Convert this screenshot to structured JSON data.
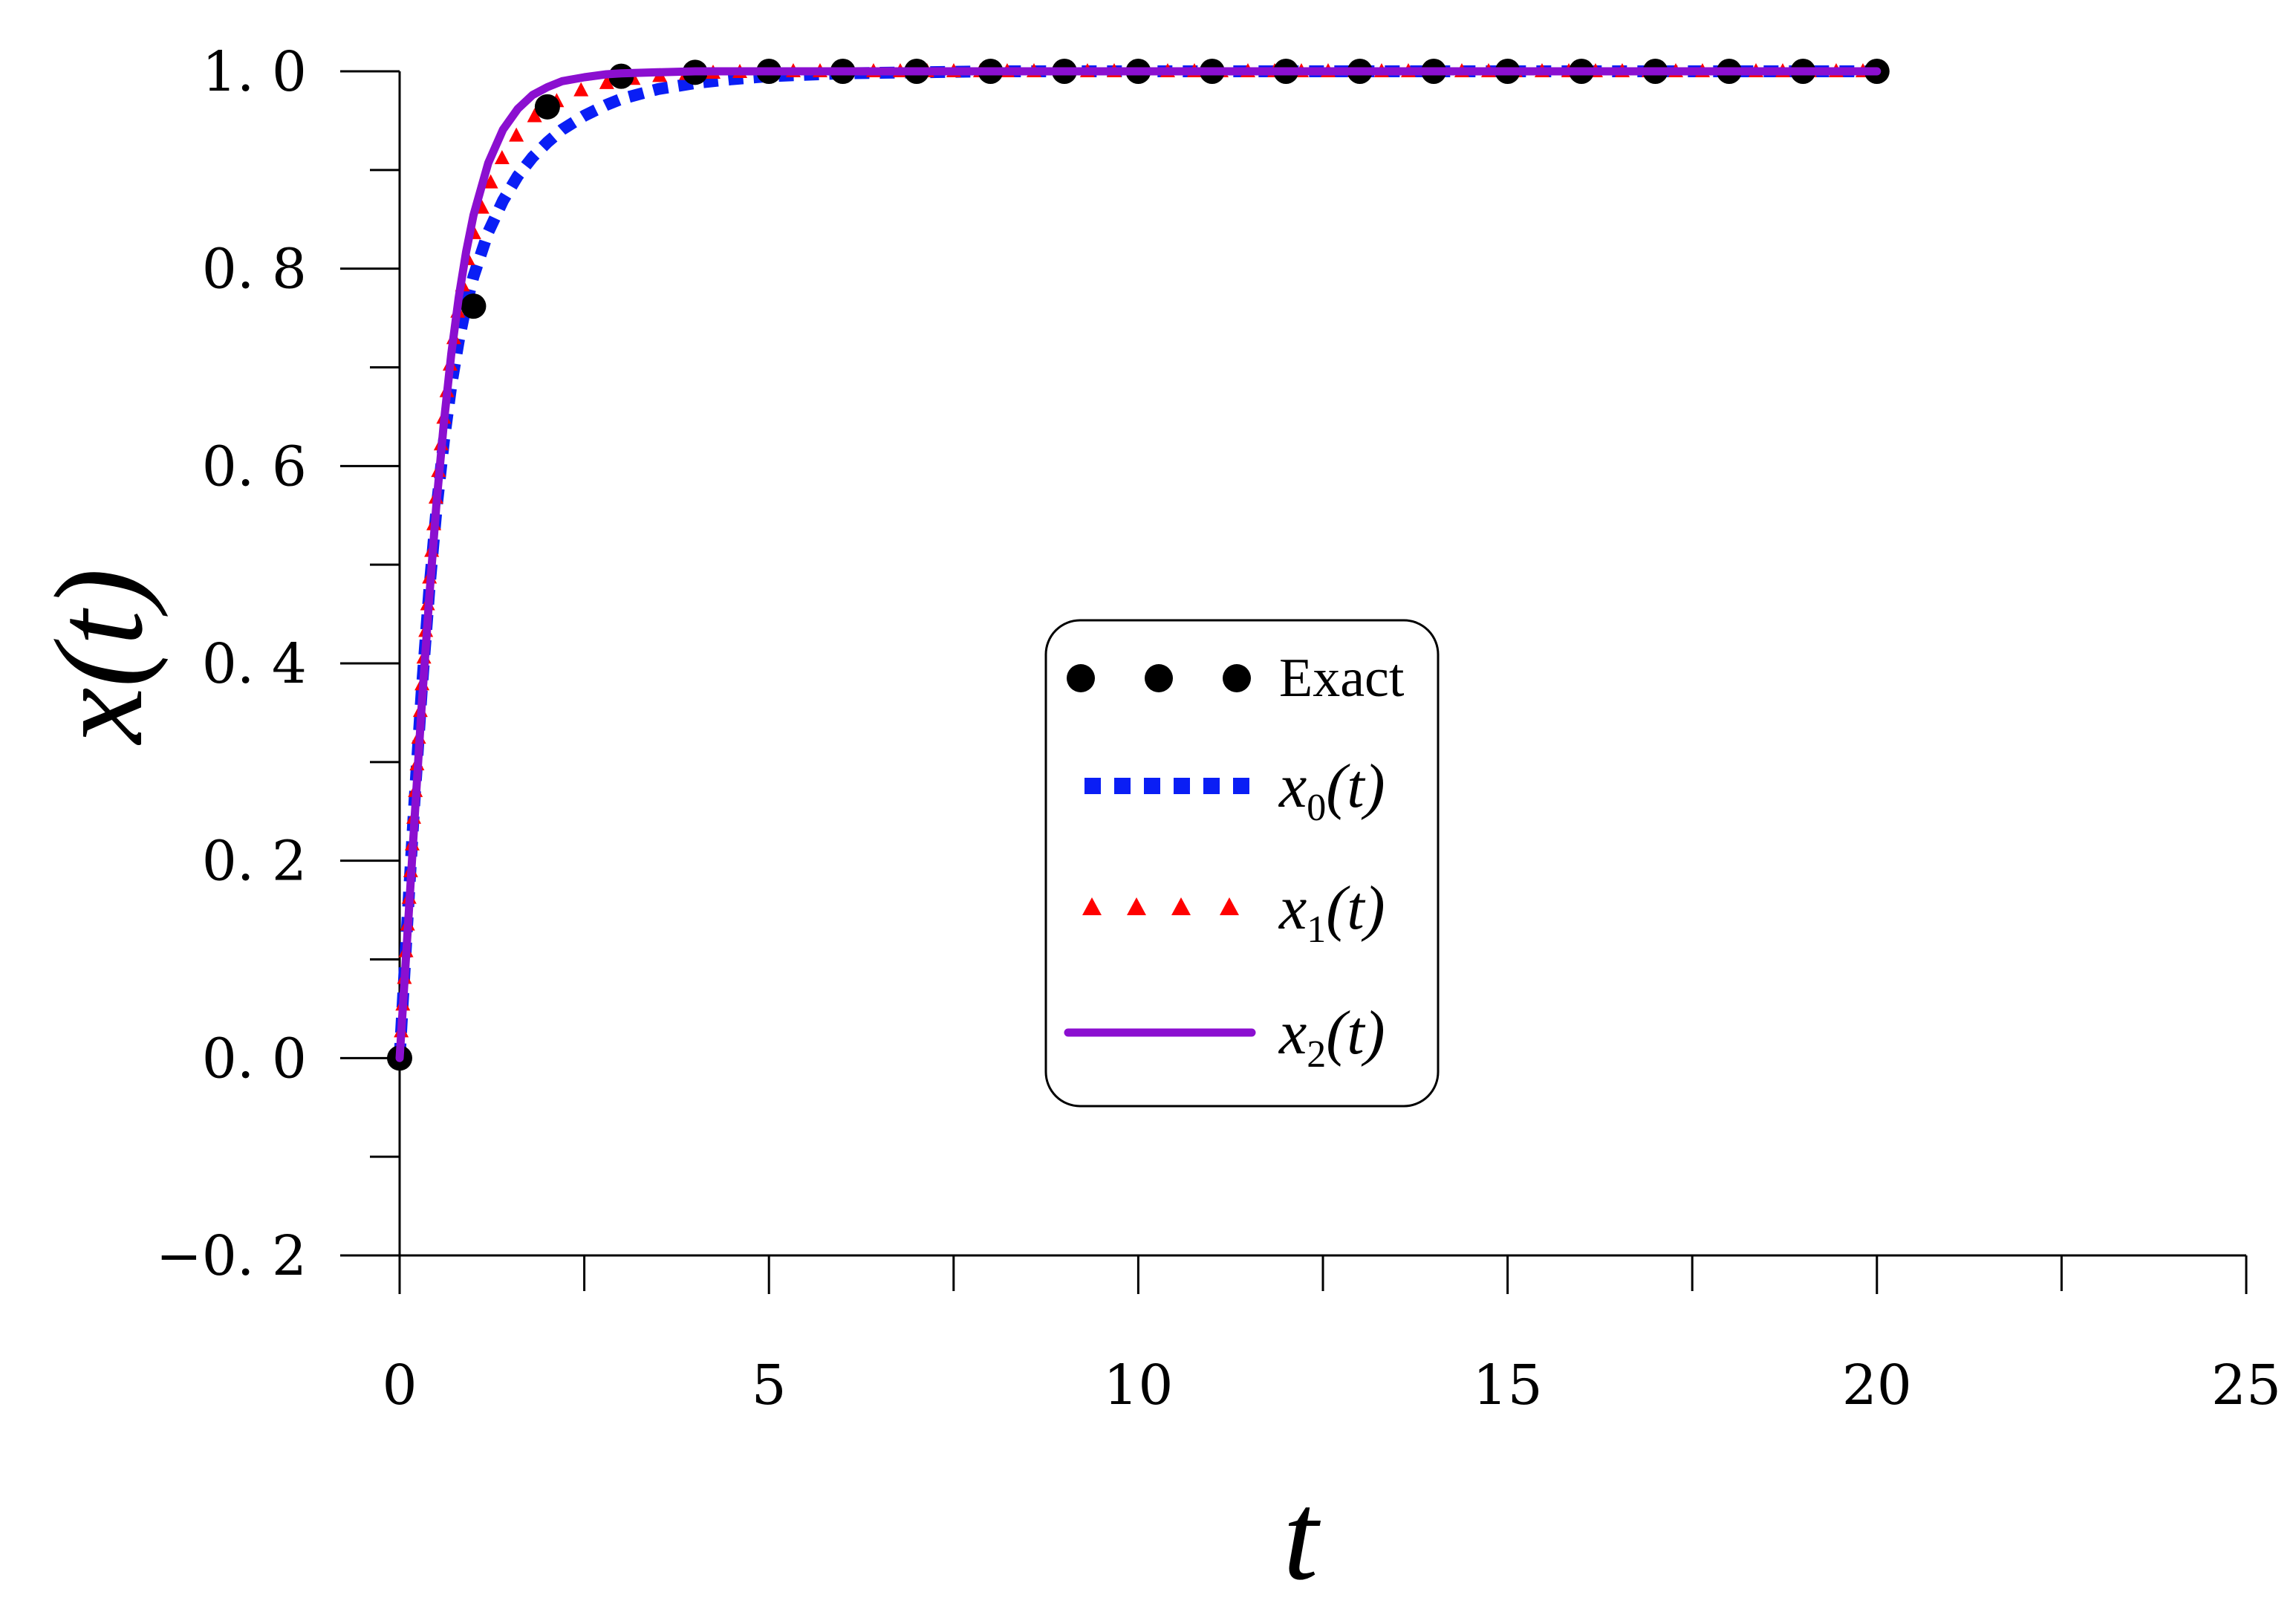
{
  "chart_data": {
    "type": "line",
    "xlabel": "t",
    "ylabel": "x(t)",
    "xlim": [
      0,
      25
    ],
    "ylim": [
      -0.2,
      1.0
    ],
    "x_ticks": [
      0,
      5,
      10,
      15,
      20,
      25
    ],
    "y_ticks": [
      -0.2,
      0.0,
      0.2,
      0.4,
      0.6,
      0.8,
      1.0
    ],
    "x_tick_labels": [
      "0",
      "5",
      "10",
      "15",
      "20",
      "25"
    ],
    "y_tick_labels": [
      "−0. 2",
      "0. 0",
      "0. 2",
      "0. 4",
      "0. 6",
      "0. 8",
      "1. 0"
    ],
    "grid": false,
    "legend_position": "center",
    "series": [
      {
        "name": "Exact",
        "style": "markers-circle",
        "color": "#000000",
        "x": [
          0,
          1,
          2,
          3,
          4,
          5,
          6,
          7,
          8,
          9,
          10,
          11,
          12,
          13,
          14,
          15,
          16,
          17,
          18,
          19,
          20
        ],
        "y": [
          0.0,
          0.762,
          0.964,
          0.995,
          0.999,
          1.0,
          1.0,
          1.0,
          1.0,
          1.0,
          1.0,
          1.0,
          1.0,
          1.0,
          1.0,
          1.0,
          1.0,
          1.0,
          1.0,
          1.0,
          1.0
        ]
      },
      {
        "name": "x0(t)",
        "label_base": "x",
        "label_sub": "0",
        "label_arg": "(t)",
        "style": "dashed-square",
        "color": "#0a1ef5",
        "x": [
          0,
          0.1,
          0.2,
          0.3,
          0.4,
          0.5,
          0.6,
          0.7,
          0.8,
          0.9,
          1.0,
          1.2,
          1.4,
          1.6,
          1.8,
          2.0,
          2.2,
          2.5,
          2.8,
          3.0,
          3.5,
          4.0,
          4.5,
          5.0,
          6.0,
          8.0,
          10,
          12,
          14,
          16,
          18,
          20
        ],
        "y": [
          0.0,
          0.132,
          0.259,
          0.373,
          0.473,
          0.557,
          0.626,
          0.682,
          0.727,
          0.763,
          0.792,
          0.837,
          0.869,
          0.894,
          0.913,
          0.928,
          0.941,
          0.955,
          0.966,
          0.972,
          0.982,
          0.988,
          0.992,
          0.995,
          0.998,
          1.0,
          1.0,
          1.0,
          1.0,
          1.0,
          1.0,
          1.0
        ]
      },
      {
        "name": "x1(t)",
        "label_base": "x",
        "label_sub": "1",
        "label_arg": "(t)",
        "style": "markers-triangle",
        "color": "#ff0000",
        "x": [
          0,
          0.1,
          0.2,
          0.3,
          0.4,
          0.5,
          0.6,
          0.7,
          0.8,
          0.9,
          1.0,
          1.2,
          1.4,
          1.6,
          1.8,
          2.0,
          2.2,
          2.5,
          2.8,
          3.0,
          3.5,
          4.0,
          4.5,
          5.0,
          6.0,
          8.0,
          10,
          12,
          14,
          16,
          18,
          20
        ],
        "y": [
          0.0,
          0.125,
          0.255,
          0.375,
          0.483,
          0.575,
          0.651,
          0.713,
          0.763,
          0.803,
          0.835,
          0.882,
          0.914,
          0.937,
          0.953,
          0.964,
          0.973,
          0.982,
          0.988,
          0.991,
          0.995,
          0.998,
          0.999,
          1.0,
          1.0,
          1.0,
          1.0,
          1.0,
          1.0,
          1.0,
          1.0,
          1.0
        ]
      },
      {
        "name": "x2(t)",
        "label_base": "x",
        "label_sub": "2",
        "label_arg": "(t)",
        "style": "solid",
        "color": "#8b0fd0",
        "x": [
          0,
          0.1,
          0.2,
          0.3,
          0.4,
          0.5,
          0.6,
          0.7,
          0.8,
          0.9,
          1.0,
          1.2,
          1.4,
          1.6,
          1.8,
          2.0,
          2.2,
          2.5,
          2.8,
          3.0,
          3.5,
          4.0,
          5.0,
          6.0,
          8.0,
          10,
          12,
          14,
          16,
          18,
          20
        ],
        "y": [
          0.0,
          0.118,
          0.24,
          0.358,
          0.466,
          0.563,
          0.645,
          0.714,
          0.771,
          0.817,
          0.854,
          0.907,
          0.941,
          0.962,
          0.976,
          0.984,
          0.99,
          0.994,
          0.997,
          0.998,
          0.999,
          1.0,
          1.0,
          1.0,
          1.0,
          1.0,
          1.0,
          1.0,
          1.0,
          1.0,
          1.0
        ]
      }
    ]
  }
}
